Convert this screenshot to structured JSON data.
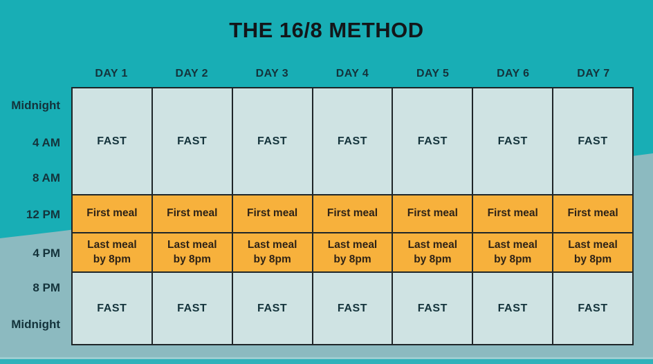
{
  "title": "THE 16/8 METHOD",
  "table": {
    "day_labels": [
      "DAY 1",
      "DAY 2",
      "DAY 3",
      "DAY 4",
      "DAY 5",
      "DAY 6",
      "DAY 7"
    ],
    "time_labels": [
      "Midnight",
      "4 AM",
      "8 AM",
      "12 PM",
      "4 PM",
      "8 PM",
      "Midnight"
    ],
    "rows": [
      {
        "type": "fast",
        "text": "FAST"
      },
      {
        "type": "meal",
        "text": "First meal"
      },
      {
        "type": "meal",
        "text": "Last meal\nby 8pm"
      },
      {
        "type": "fast",
        "text": "FAST"
      }
    ]
  },
  "colors": {
    "background_teal": "#18aeb5",
    "background_wave": "#8cbac0",
    "cell_fast": "#cfe3e3",
    "cell_meal": "#f7b13c",
    "border": "#1e2528",
    "bottom_stripe": "#2fb2ba",
    "bottom_stripe_edge": "#9ecdd1",
    "title_text": "#131619",
    "label_text": "#14333b",
    "meal_text": "#2e2317"
  }
}
